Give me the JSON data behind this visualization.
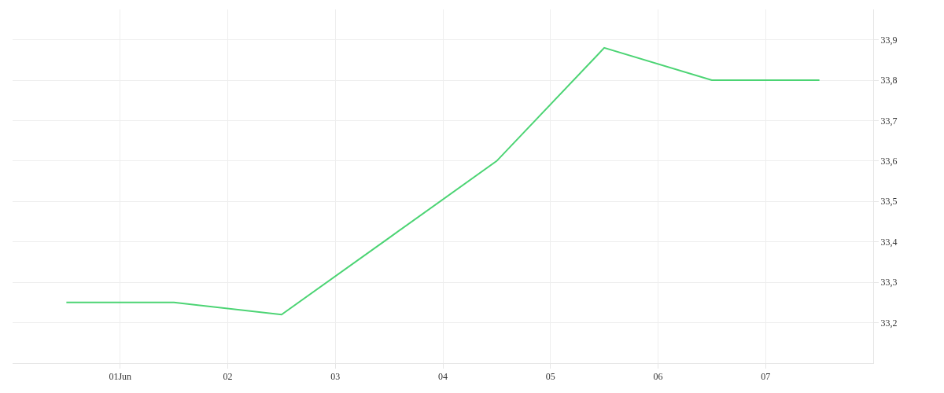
{
  "chart_data": {
    "type": "line",
    "x": [
      "--05-31T12:00",
      "--06-01T12:00",
      "--06-02T12:00",
      "--06-03T12:00",
      "--06-04T12:00",
      "--06-05T12:00",
      "--06-06T12:00",
      "--06-07T12:00"
    ],
    "series": [
      {
        "color": "#4cd474",
        "values": [
          33.25,
          33.25,
          33.22,
          33.41,
          33.6,
          33.88,
          33.8,
          33.8
        ]
      }
    ],
    "xlim": [
      "--05-31",
      "--06-08"
    ],
    "xticks": [
      {
        "value": "--06-01",
        "label": "01Jun"
      },
      {
        "value": "--06-02",
        "label": "02"
      },
      {
        "value": "--06-03",
        "label": "03"
      },
      {
        "value": "--06-04",
        "label": "04"
      },
      {
        "value": "--06-05",
        "label": "05"
      },
      {
        "value": "--06-06",
        "label": "06"
      },
      {
        "value": "--06-07",
        "label": "07"
      }
    ],
    "ylim": [
      33.1,
      33.975
    ],
    "yticks": [
      {
        "value": 33.2,
        "label": "33,2"
      },
      {
        "value": 33.3,
        "label": "33,3"
      },
      {
        "value": 33.4,
        "label": "33,4"
      },
      {
        "value": 33.5,
        "label": "33,5"
      },
      {
        "value": 33.6,
        "label": "33,6"
      },
      {
        "value": 33.7,
        "label": "33,7"
      },
      {
        "value": 33.8,
        "label": "33,8"
      },
      {
        "value": 33.9,
        "label": "33,9"
      }
    ],
    "grid": true,
    "marker": "none",
    "line_style": "solid"
  }
}
